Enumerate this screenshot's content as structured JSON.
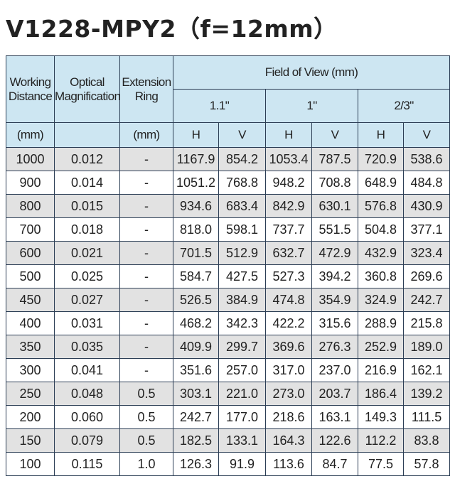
{
  "title": "V1228-MPY2（f=12mm）",
  "table": {
    "header": {
      "working_distance": [
        "Working",
        "Distance"
      ],
      "optical_magnification": [
        "Optical",
        "Magnification"
      ],
      "extension_ring": [
        "Extension",
        "Ring"
      ],
      "field_of_view": "Field of View (mm)",
      "formats": [
        "1.1\"",
        "1\"",
        "2/3\""
      ],
      "units": {
        "working_distance": "(mm)",
        "extension_ring": "(mm)"
      },
      "axes": [
        "H",
        "V",
        "H",
        "V",
        "H",
        "V"
      ]
    },
    "rows": [
      [
        "1000",
        "0.012",
        "-",
        "1167.9",
        "854.2",
        "1053.4",
        "787.5",
        "720.9",
        "538.6"
      ],
      [
        "900",
        "0.014",
        "-",
        "1051.2",
        "768.8",
        "948.2",
        "708.8",
        "648.9",
        "484.8"
      ],
      [
        "800",
        "0.015",
        "-",
        "934.6",
        "683.4",
        "842.9",
        "630.1",
        "576.8",
        "430.9"
      ],
      [
        "700",
        "0.018",
        "-",
        "818.0",
        "598.1",
        "737.7",
        "551.5",
        "504.8",
        "377.1"
      ],
      [
        "600",
        "0.021",
        "-",
        "701.5",
        "512.9",
        "632.7",
        "472.9",
        "432.9",
        "323.4"
      ],
      [
        "500",
        "0.025",
        "-",
        "584.7",
        "427.5",
        "527.3",
        "394.2",
        "360.8",
        "269.6"
      ],
      [
        "450",
        "0.027",
        "-",
        "526.5",
        "384.9",
        "474.8",
        "354.9",
        "324.9",
        "242.7"
      ],
      [
        "400",
        "0.031",
        "-",
        "468.2",
        "342.3",
        "422.2",
        "315.6",
        "288.9",
        "215.8"
      ],
      [
        "350",
        "0.035",
        "-",
        "409.9",
        "299.7",
        "369.6",
        "276.3",
        "252.9",
        "189.0"
      ],
      [
        "300",
        "0.041",
        "-",
        "351.6",
        "257.0",
        "317.0",
        "237.0",
        "216.9",
        "162.1"
      ],
      [
        "250",
        "0.048",
        "0.5",
        "303.1",
        "221.0",
        "273.0",
        "203.7",
        "186.4",
        "139.2"
      ],
      [
        "200",
        "0.060",
        "0.5",
        "242.7",
        "177.0",
        "218.6",
        "163.1",
        "149.3",
        "111.5"
      ],
      [
        "150",
        "0.079",
        "0.5",
        "182.5",
        "133.1",
        "164.3",
        "122.6",
        "112.2",
        "83.8"
      ],
      [
        "100",
        "0.115",
        "1.0",
        "126.3",
        "91.9",
        "113.6",
        "84.7",
        "77.5",
        "57.8"
      ]
    ]
  }
}
